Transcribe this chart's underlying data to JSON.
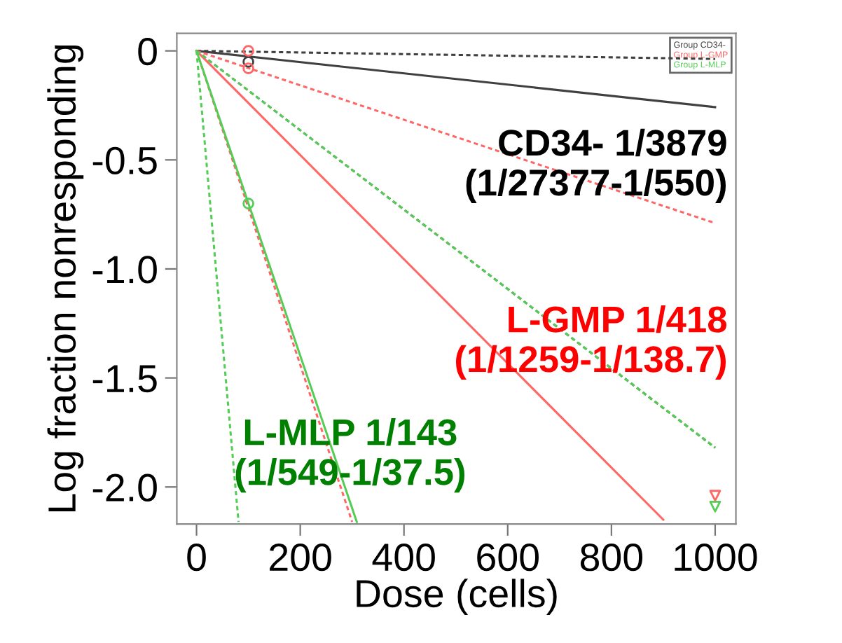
{
  "chart_data": {
    "type": "line",
    "xlabel": "Dose (cells)",
    "ylabel": "Log fraction nonresponding",
    "xlim": [
      -38,
      1040
    ],
    "ylim": [
      -2.17,
      0.08
    ],
    "xticks": [
      0,
      200,
      400,
      600,
      800,
      1000
    ],
    "yticks": [
      0,
      {
        "value": -0.5,
        "label": "-0.5"
      },
      {
        "value": -1.0,
        "label": "-1.0"
      },
      {
        "value": -1.5,
        "label": "-1.5"
      },
      {
        "value": -2.0,
        "label": "-2.0"
      }
    ],
    "grid": false,
    "legend": "top right",
    "marker": "none",
    "series": [
      {
        "name": "Group CD34-",
        "color": "#404040",
        "line_style": "solid",
        "x": [
          0,
          1000
        ],
        "values": [
          0,
          -0.258
        ]
      },
      {
        "color": "#404040",
        "line_style": "dashed",
        "x": [
          0,
          1000
        ],
        "values": [
          0,
          -0.037
        ]
      },
      {
        "color": "#2e6b2e",
        "line_style": "dashed",
        "x": [
          0,
          1000
        ],
        "values": [
          0,
          -1.82
        ]
      },
      {
        "name": "Group L-GMP",
        "color": "#ff6666",
        "line_style": "solid",
        "x": [
          0,
          900
        ],
        "values": [
          0,
          -2.15
        ]
      },
      {
        "color": "#ff6666",
        "line_style": "dashed",
        "x": [
          0,
          1000
        ],
        "values": [
          0,
          -0.79
        ]
      },
      {
        "color": "#ff6666",
        "line_style": "dashed",
        "x": [
          0,
          300
        ],
        "values": [
          0,
          -2.16
        ]
      },
      {
        "name": "Group L-MLP",
        "color": "#55cc55",
        "line_style": "solid",
        "x": [
          0,
          309
        ],
        "values": [
          0,
          -2.16
        ]
      },
      {
        "color": "#55cc55",
        "line_style": "dashed",
        "x": [
          0,
          1000
        ],
        "values": [
          0,
          -1.82
        ]
      },
      {
        "color": "#55cc55",
        "line_style": "dashed",
        "x": [
          0,
          81
        ],
        "values": [
          0,
          -2.16
        ]
      },
      {
        "type": "scatter",
        "marker": "circle",
        "color": "#404040",
        "x": [
          100
        ],
        "values": [
          -0.05
        ]
      },
      {
        "type": "scatter",
        "marker": "circle",
        "color": "#ff6666",
        "x": [
          100,
          100
        ],
        "values": [
          0.0,
          -0.08
        ]
      },
      {
        "type": "scatter",
        "marker": "circle",
        "color": "#55cc55",
        "x": [
          100
        ],
        "values": [
          -0.7
        ]
      },
      {
        "type": "scatter",
        "marker": "triangle",
        "color": "#ff6666",
        "x": [
          1000
        ],
        "values": [
          -2.04
        ]
      },
      {
        "type": "scatter",
        "marker": "triangle",
        "color": "#55cc55",
        "x": [
          1000
        ],
        "values": [
          -2.09
        ]
      }
    ],
    "annotations": [
      "CD34- 1/3879\n(1/27377-1/550)",
      "L-GMP 1/418\n(1/1259-1/138.7)",
      "L-MLP 1/143\n(1/549-1/37.5)"
    ]
  }
}
